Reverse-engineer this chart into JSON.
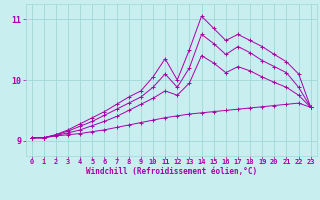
{
  "xlabel": "Windchill (Refroidissement éolien,°C)",
  "bg_color": "#c8eef0",
  "grid_color": "#a0d8d8",
  "line_color": "#aa00aa",
  "spine_color": "#888888",
  "xlim": [
    -0.5,
    23.5
  ],
  "ylim": [
    8.75,
    11.25
  ],
  "xticks": [
    0,
    1,
    2,
    3,
    4,
    5,
    6,
    7,
    8,
    9,
    10,
    11,
    12,
    13,
    14,
    15,
    16,
    17,
    18,
    19,
    20,
    21,
    22,
    23
  ],
  "yticks": [
    9,
    10,
    11
  ],
  "xlabel_fontsize": 5.5,
  "tick_fontsize": 5,
  "ytick_fontsize": 6,
  "lines": [
    {
      "x": [
        0,
        1,
        2,
        3,
        4,
        5,
        6,
        7,
        8,
        9,
        10,
        11,
        12,
        13,
        14,
        15,
        16,
        17,
        18,
        19,
        20,
        21,
        22,
        23
      ],
      "y": [
        9.05,
        9.05,
        9.08,
        9.1,
        9.12,
        9.15,
        9.18,
        9.22,
        9.26,
        9.3,
        9.34,
        9.38,
        9.41,
        9.44,
        9.46,
        9.48,
        9.5,
        9.52,
        9.54,
        9.56,
        9.58,
        9.6,
        9.62,
        9.55
      ]
    },
    {
      "x": [
        0,
        1,
        2,
        3,
        4,
        5,
        6,
        7,
        8,
        9,
        10,
        11,
        12,
        13,
        14,
        15,
        16,
        17,
        18,
        19,
        20,
        21,
        22,
        23
      ],
      "y": [
        9.05,
        9.05,
        9.1,
        9.18,
        9.28,
        9.38,
        9.48,
        9.6,
        9.72,
        9.82,
        10.05,
        10.35,
        10.0,
        10.5,
        11.05,
        10.85,
        10.65,
        10.75,
        10.65,
        10.55,
        10.42,
        10.3,
        10.1,
        9.55
      ]
    },
    {
      "x": [
        0,
        1,
        2,
        3,
        4,
        5,
        6,
        7,
        8,
        9,
        10,
        11,
        12,
        13,
        14,
        15,
        16,
        17,
        18,
        19,
        20,
        21,
        22,
        23
      ],
      "y": [
        9.05,
        9.05,
        9.1,
        9.16,
        9.24,
        9.32,
        9.42,
        9.52,
        9.62,
        9.72,
        9.88,
        10.1,
        9.88,
        10.2,
        10.75,
        10.6,
        10.42,
        10.55,
        10.45,
        10.32,
        10.22,
        10.12,
        9.88,
        9.55
      ]
    },
    {
      "x": [
        0,
        1,
        2,
        3,
        4,
        5,
        6,
        7,
        8,
        9,
        10,
        11,
        12,
        13,
        14,
        15,
        16,
        17,
        18,
        19,
        20,
        21,
        22,
        23
      ],
      "y": [
        9.05,
        9.05,
        9.09,
        9.13,
        9.18,
        9.25,
        9.32,
        9.4,
        9.5,
        9.6,
        9.7,
        9.82,
        9.75,
        9.95,
        10.4,
        10.28,
        10.12,
        10.22,
        10.15,
        10.05,
        9.96,
        9.88,
        9.75,
        9.55
      ]
    }
  ]
}
